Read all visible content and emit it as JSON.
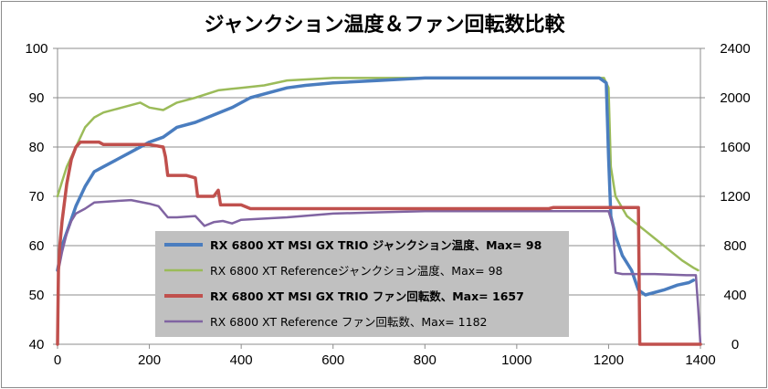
{
  "chart_data": {
    "type": "line",
    "title": "ジャンクション温度＆ファン回転数比較",
    "xlabel": "",
    "ylabel": "",
    "y2label": "",
    "grid": true,
    "legend_position": "bottom-center",
    "x_ticks": [
      "0",
      "200",
      "400",
      "600",
      "800",
      "1000",
      "1200",
      "1400"
    ],
    "y_left_ticks": [
      "40",
      "50",
      "60",
      "70",
      "80",
      "90",
      "100"
    ],
    "y_right_ticks": [
      "0",
      "400",
      "800",
      "1200",
      "1600",
      "2000",
      "2400"
    ],
    "xlim": [
      0,
      1400
    ],
    "ylim_left": [
      40,
      100
    ],
    "ylim_right": [
      0,
      2400
    ],
    "series": [
      {
        "name": "RX 6800 XT MSI GX TRIO ジャンクション温度、Max= 98",
        "axis": "left",
        "color": "#4a7dbf",
        "bold": true,
        "points": [
          [
            0,
            55
          ],
          [
            10,
            60
          ],
          [
            25,
            64
          ],
          [
            40,
            68
          ],
          [
            60,
            72
          ],
          [
            80,
            75
          ],
          [
            100,
            76
          ],
          [
            130,
            77.5
          ],
          [
            160,
            79
          ],
          [
            200,
            81
          ],
          [
            230,
            82
          ],
          [
            260,
            84
          ],
          [
            300,
            85
          ],
          [
            340,
            86.5
          ],
          [
            380,
            88
          ],
          [
            420,
            90
          ],
          [
            460,
            91
          ],
          [
            500,
            92
          ],
          [
            540,
            92.5
          ],
          [
            600,
            93
          ],
          [
            700,
            93.5
          ],
          [
            800,
            94
          ],
          [
            900,
            94
          ],
          [
            1000,
            94
          ],
          [
            1100,
            94
          ],
          [
            1180,
            94
          ],
          [
            1195,
            93
          ],
          [
            1200,
            78
          ],
          [
            1205,
            66
          ],
          [
            1215,
            62
          ],
          [
            1230,
            58
          ],
          [
            1250,
            55
          ],
          [
            1265,
            51
          ],
          [
            1280,
            50
          ],
          [
            1320,
            51
          ],
          [
            1350,
            52
          ],
          [
            1375,
            52.5
          ],
          [
            1385,
            53
          ]
        ]
      },
      {
        "name": "RX 6800 XT Referenceジャンクション温度、Max= 98",
        "axis": "left",
        "color": "#9bbb59",
        "bold": false,
        "points": [
          [
            0,
            70
          ],
          [
            10,
            73
          ],
          [
            20,
            76
          ],
          [
            30,
            78
          ],
          [
            40,
            80
          ],
          [
            60,
            84
          ],
          [
            80,
            86
          ],
          [
            100,
            87
          ],
          [
            140,
            88
          ],
          [
            180,
            89
          ],
          [
            200,
            88
          ],
          [
            230,
            87.5
          ],
          [
            260,
            89
          ],
          [
            300,
            90
          ],
          [
            350,
            91.5
          ],
          [
            400,
            92
          ],
          [
            450,
            92.5
          ],
          [
            500,
            93.5
          ],
          [
            600,
            94
          ],
          [
            700,
            94
          ],
          [
            800,
            94
          ],
          [
            900,
            94
          ],
          [
            1000,
            94
          ],
          [
            1100,
            94
          ],
          [
            1190,
            94
          ],
          [
            1200,
            92
          ],
          [
            1205,
            76
          ],
          [
            1215,
            70
          ],
          [
            1240,
            66
          ],
          [
            1280,
            63
          ],
          [
            1320,
            60
          ],
          [
            1360,
            57
          ],
          [
            1385,
            55.5
          ],
          [
            1395,
            55
          ]
        ]
      },
      {
        "name": "RX 6800 XT MSI GX TRIO ファン回転数、Max= 1657",
        "axis": "right",
        "color": "#c0504d",
        "bold": true,
        "points": [
          [
            0,
            0
          ],
          [
            2,
            600
          ],
          [
            5,
            800
          ],
          [
            10,
            1000
          ],
          [
            20,
            1300
          ],
          [
            30,
            1500
          ],
          [
            40,
            1600
          ],
          [
            50,
            1640
          ],
          [
            90,
            1640
          ],
          [
            100,
            1620
          ],
          [
            200,
            1620
          ],
          [
            230,
            1600
          ],
          [
            235,
            1520
          ],
          [
            240,
            1370
          ],
          [
            280,
            1370
          ],
          [
            300,
            1350
          ],
          [
            305,
            1200
          ],
          [
            340,
            1200
          ],
          [
            350,
            1250
          ],
          [
            355,
            1130
          ],
          [
            400,
            1130
          ],
          [
            420,
            1100
          ],
          [
            600,
            1100
          ],
          [
            800,
            1100
          ],
          [
            1000,
            1100
          ],
          [
            1070,
            1100
          ],
          [
            1080,
            1110
          ],
          [
            1200,
            1110
          ],
          [
            1265,
            1110
          ],
          [
            1268,
            0
          ],
          [
            1400,
            0
          ]
        ]
      },
      {
        "name": "RX 6800 XT Reference ファン回転数、Max= 1182",
        "axis": "right",
        "color": "#8064a2",
        "bold": false,
        "points": [
          [
            0,
            0
          ],
          [
            2,
            600
          ],
          [
            10,
            750
          ],
          [
            20,
            900
          ],
          [
            30,
            1000
          ],
          [
            40,
            1060
          ],
          [
            60,
            1100
          ],
          [
            80,
            1150
          ],
          [
            120,
            1160
          ],
          [
            160,
            1170
          ],
          [
            200,
            1140
          ],
          [
            220,
            1120
          ],
          [
            240,
            1030
          ],
          [
            260,
            1030
          ],
          [
            300,
            1040
          ],
          [
            320,
            960
          ],
          [
            340,
            990
          ],
          [
            360,
            1000
          ],
          [
            380,
            980
          ],
          [
            400,
            1010
          ],
          [
            500,
            1030
          ],
          [
            600,
            1060
          ],
          [
            700,
            1070
          ],
          [
            800,
            1080
          ],
          [
            900,
            1080
          ],
          [
            1000,
            1080
          ],
          [
            1100,
            1080
          ],
          [
            1200,
            1080
          ],
          [
            1210,
            960
          ],
          [
            1215,
            580
          ],
          [
            1230,
            570
          ],
          [
            1300,
            570
          ],
          [
            1370,
            560
          ],
          [
            1390,
            560
          ],
          [
            1395,
            300
          ],
          [
            1400,
            0
          ]
        ]
      }
    ]
  }
}
